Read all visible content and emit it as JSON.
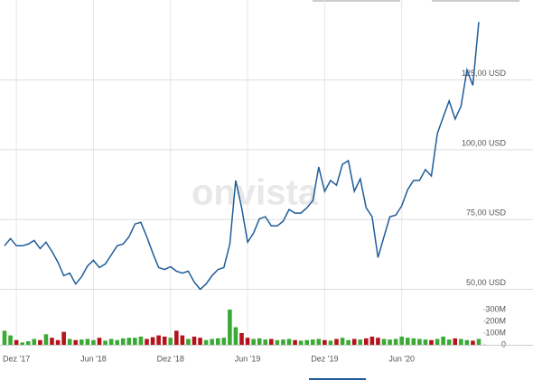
{
  "chart_data": [
    {
      "type": "line",
      "watermark": "onvista",
      "color": "#1f5c99",
      "categories": [
        null,
        null,
        "Dez '17",
        null,
        null,
        null,
        null,
        null,
        null,
        null,
        null,
        null,
        null,
        null,
        null,
        "Jun '18",
        null,
        null,
        null,
        null,
        null,
        null,
        null,
        null,
        null,
        null,
        null,
        null,
        "Dez '18",
        null,
        null,
        null,
        null,
        null,
        null,
        null,
        null,
        null,
        null,
        null,
        null,
        "Jun '19",
        null,
        null,
        null,
        null,
        null,
        null,
        null,
        null,
        null,
        null,
        null,
        null,
        "Dez '19",
        null,
        null,
        null,
        null,
        null,
        null,
        null,
        null,
        null,
        null,
        null,
        null,
        "Jun '20",
        null,
        null,
        null,
        null,
        null,
        null,
        null,
        null,
        null,
        null,
        null,
        null,
        null
      ],
      "values": [
        65.6,
        68.2,
        65.6,
        65.6,
        66.2,
        67.5,
        64.6,
        66.9,
        63.6,
        59.7,
        54.9,
        55.8,
        51.9,
        54.5,
        58.4,
        60.4,
        57.8,
        59.1,
        62.3,
        65.6,
        66.2,
        68.8,
        73.4,
        74.0,
        68.8,
        63.0,
        57.8,
        57.1,
        58.1,
        56.5,
        55.8,
        56.5,
        52.6,
        50.0,
        51.9,
        54.9,
        57.1,
        57.8,
        66.2,
        89.0,
        79.2,
        66.9,
        70.1,
        75.3,
        76.0,
        72.7,
        72.7,
        74.4,
        78.6,
        77.3,
        77.3,
        79.2,
        81.8,
        93.8,
        85.1,
        89.0,
        87.3,
        94.8,
        96.1,
        85.1,
        89.6,
        79.2,
        76.0,
        61.4,
        68.8,
        76.0,
        76.6,
        79.9,
        85.7,
        89.0,
        89.0,
        92.9,
        90.6,
        105.8,
        111.7,
        117.5,
        111.0,
        115.6,
        128.6,
        123.1,
        145.8
      ],
      "ylim": [
        45,
        153
      ],
      "yticks": [
        {
          "value": 50,
          "label": "50,00 USD"
        },
        {
          "value": 75,
          "label": "75,00 USD"
        },
        {
          "value": 100,
          "label": "100,00 USD"
        },
        {
          "value": 125,
          "label": "125,00 USD"
        }
      ],
      "grid": true
    },
    {
      "type": "bar",
      "up_color": "#3aaa35",
      "down_color": "#b5121b",
      "values": [
        120,
        80,
        40,
        20,
        30,
        50,
        40,
        90,
        60,
        40,
        110,
        50,
        40,
        45,
        50,
        40,
        60,
        35,
        50,
        40,
        55,
        60,
        60,
        70,
        50,
        65,
        80,
        70,
        60,
        120,
        80,
        50,
        70,
        60,
        40,
        50,
        55,
        60,
        300,
        150,
        100,
        60,
        50,
        55,
        45,
        50,
        40,
        45,
        50,
        40,
        35,
        40,
        45,
        50,
        40,
        35,
        50,
        60,
        40,
        50,
        45,
        55,
        70,
        60,
        50,
        45,
        50,
        70,
        60,
        55,
        50,
        45,
        40,
        50,
        70,
        45,
        55,
        50,
        40,
        35,
        50
      ],
      "ylim": [
        0,
        350
      ],
      "yticks": [
        0,
        {
          "value": 100,
          "label": "100M"
        },
        {
          "value": 200,
          "label": "200M"
        },
        {
          "value": 300,
          "label": "300M"
        }
      ]
    }
  ]
}
